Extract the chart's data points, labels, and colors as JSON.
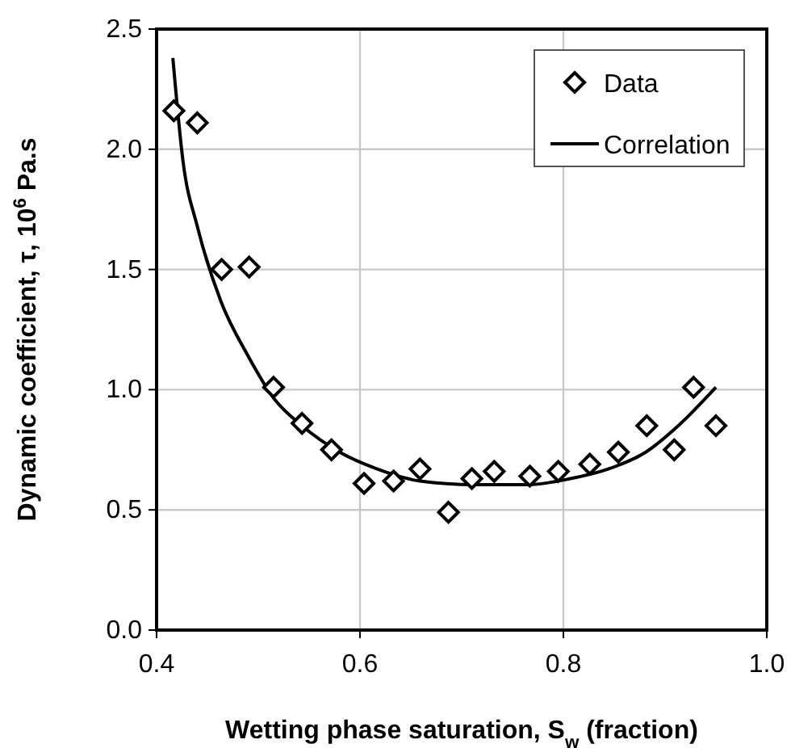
{
  "chart_data": {
    "type": "scatter",
    "xlabel": "Wetting phase saturation, S$_{w}$ (fraction)",
    "ylabel": "Dynamic coefficient, τ, 10$^{6}$ Pa.s",
    "xlim": [
      0.4,
      1.0
    ],
    "ylim": [
      0,
      2.5
    ],
    "xticks": [
      {
        "value": 0.4,
        "label": "0.4"
      },
      {
        "value": 0.6,
        "label": "0.6"
      },
      {
        "value": 0.8,
        "label": "0.8"
      },
      {
        "value": 1.0,
        "label": "1.0"
      }
    ],
    "yticks": [
      {
        "value": 0,
        "label": "0.0"
      },
      {
        "value": 0.5,
        "label": "0.5"
      },
      {
        "value": 1.0,
        "label": "1.0"
      },
      {
        "value": 1.5,
        "label": "1.5"
      },
      {
        "value": 2.0,
        "label": "2.0"
      },
      {
        "value": 2.5,
        "label": "2.5"
      }
    ],
    "grid": true,
    "legend": "top right",
    "series": [
      {
        "name": "Data",
        "marker": "diamond",
        "color": "#000000",
        "x": [
          0.417,
          0.44,
          0.464,
          0.491,
          0.515,
          0.543,
          0.572,
          0.604,
          0.633,
          0.659,
          0.687,
          0.71,
          0.732,
          0.767,
          0.795,
          0.826,
          0.854,
          0.882,
          0.909,
          0.928,
          0.95
        ],
        "values": [
          2.16,
          2.11,
          1.5,
          1.51,
          1.01,
          0.86,
          0.75,
          0.61,
          0.62,
          0.67,
          0.49,
          0.63,
          0.66,
          0.64,
          0.66,
          0.69,
          0.74,
          0.85,
          0.75,
          1.01,
          0.85
        ]
      },
      {
        "name": "Correlation",
        "type": "line",
        "line_style": "solid",
        "color": "#000000",
        "x": [
          0.416,
          0.426,
          0.44,
          0.463,
          0.49,
          0.516,
          0.543,
          0.58,
          0.617,
          0.659,
          0.712,
          0.765,
          0.807,
          0.844,
          0.881,
          0.913,
          0.95
        ],
        "values": [
          2.38,
          1.95,
          1.68,
          1.37,
          1.14,
          0.96,
          0.85,
          0.74,
          0.67,
          0.62,
          0.605,
          0.605,
          0.63,
          0.67,
          0.74,
          0.85,
          1.01
        ]
      }
    ]
  }
}
